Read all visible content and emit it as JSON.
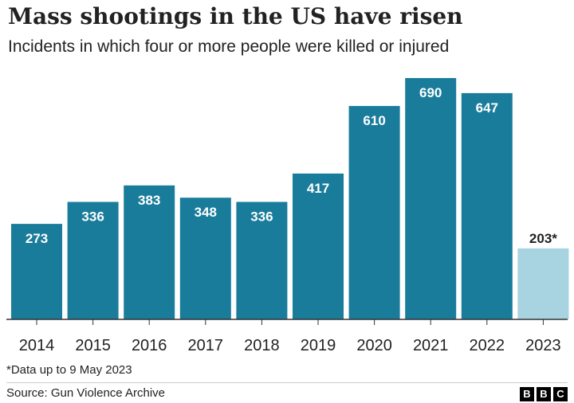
{
  "header": {
    "title": "Mass shootings in the US have risen",
    "subtitle": "Incidents in which four or more people were killed or injured"
  },
  "chart_data": {
    "type": "bar",
    "title": "Mass shootings in the US have risen",
    "subtitle": "Incidents in which four or more people were killed or injured",
    "categories": [
      "2014",
      "2015",
      "2016",
      "2017",
      "2018",
      "2019",
      "2020",
      "2021",
      "2022",
      "2023"
    ],
    "values": [
      273,
      336,
      383,
      348,
      336,
      417,
      610,
      690,
      647,
      203
    ],
    "data_labels": [
      "273",
      "336",
      "383",
      "348",
      "336",
      "417",
      "610",
      "690",
      "647",
      "203*"
    ],
    "xlabel": "",
    "ylabel": "",
    "ylim": [
      0,
      700
    ],
    "grid": false,
    "legend": "none",
    "colors": {
      "bar": "#1a7c9b",
      "highlight": "#a8d3e0",
      "label": "#ffffff",
      "outside_label": "#222222"
    },
    "highlight_categories": [
      "2023"
    ]
  },
  "footnote": "*Data up to 9 May 2023",
  "source": "Source: Gun Violence Archive",
  "logo": {
    "letters": [
      "B",
      "B",
      "C"
    ]
  }
}
